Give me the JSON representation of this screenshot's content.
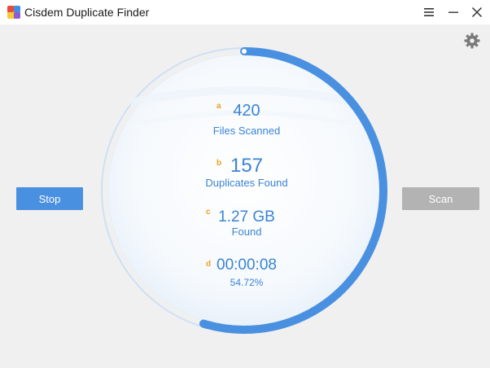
{
  "app": {
    "title": "Cisdem Duplicate Finder"
  },
  "window_controls": {
    "icons": [
      "menu-icon",
      "minimize-icon",
      "close-icon"
    ]
  },
  "toolbar": {
    "settings_icon": "gear-icon"
  },
  "buttons": {
    "stop_label": "Stop",
    "scan_label": "Scan"
  },
  "progress": {
    "fraction": 0.5472
  },
  "stats": [
    {
      "letter": "a",
      "value": "420",
      "label": "Files Scanned"
    },
    {
      "letter": "b",
      "value": "157",
      "label": "Duplicates Found"
    },
    {
      "letter": "c",
      "value": "1.27 GB",
      "label": "Found"
    },
    {
      "letter": "d",
      "value": "00:00:08",
      "label": "54.72%"
    }
  ],
  "colors": {
    "accent": "#4a90e0",
    "label_blue": "#3a84d6",
    "letter_orange": "#f0a020",
    "disabled_button": "#b3b3b3",
    "background": "#f0f0f0"
  }
}
